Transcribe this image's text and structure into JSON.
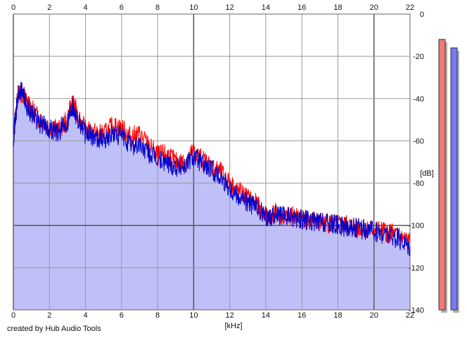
{
  "credit": "created by Hub Audio Tools",
  "chart_data": {
    "type": "area",
    "xlabel": "[kHz]",
    "ylabel": "[dB]",
    "xlim": [
      0,
      22
    ],
    "ylim": [
      -140,
      0
    ],
    "x_ticks": [
      0,
      2,
      4,
      6,
      8,
      10,
      12,
      14,
      16,
      18,
      20,
      22
    ],
    "y_ticks": [
      0,
      -20,
      -40,
      -60,
      -80,
      -100,
      -120,
      -140
    ],
    "grid": true,
    "background_fill_color": "#c0c0f8",
    "series": [
      {
        "color": "#ff0000",
        "x": [
          0,
          0.25,
          0.5,
          0.75,
          1,
          1.5,
          2,
          2.5,
          3,
          3.25,
          3.5,
          4,
          4.5,
          5,
          5.5,
          6,
          6.5,
          7,
          7.5,
          8,
          8.5,
          9,
          9.5,
          10,
          10.5,
          11,
          11.5,
          12,
          12.5,
          13,
          13.5,
          14,
          14.5,
          15,
          15.5,
          16,
          16.5,
          17,
          17.5,
          18,
          18.5,
          19,
          19.5,
          20,
          20.5,
          21,
          21.5,
          22
        ],
        "y": [
          -58,
          -38,
          -37,
          -42,
          -45,
          -50,
          -53,
          -55,
          -50,
          -42,
          -46,
          -55,
          -56,
          -57,
          -53,
          -54,
          -58,
          -57,
          -62,
          -67,
          -66,
          -70,
          -70,
          -65,
          -69,
          -72,
          -75,
          -80,
          -84,
          -87,
          -90,
          -96,
          -94,
          -97,
          -95,
          -97,
          -98,
          -98,
          -99,
          -100,
          -100,
          -101,
          -101,
          -102,
          -103,
          -104,
          -106,
          -108
        ]
      },
      {
        "color": "#0000cc",
        "x": [
          0,
          0.25,
          0.5,
          0.75,
          1,
          1.5,
          2,
          2.5,
          3,
          3.25,
          3.5,
          4,
          4.5,
          5,
          5.5,
          6,
          6.5,
          7,
          7.5,
          8,
          8.5,
          9,
          9.5,
          10,
          10.5,
          11,
          11.5,
          12,
          12.5,
          13,
          13.5,
          14,
          14.5,
          15,
          15.5,
          16,
          16.5,
          17,
          17.5,
          18,
          18.5,
          19,
          19.5,
          20,
          20.5,
          21,
          21.5,
          22
        ],
        "y": [
          -58,
          -39,
          -36,
          -44,
          -47,
          -52,
          -54,
          -56,
          -51,
          -43,
          -48,
          -57,
          -58,
          -59,
          -57,
          -58,
          -62,
          -62,
          -66,
          -69,
          -70,
          -72,
          -72,
          -67,
          -71,
          -74,
          -77,
          -82,
          -86,
          -89,
          -92,
          -96,
          -95,
          -96,
          -96,
          -97,
          -98,
          -99,
          -99,
          -100,
          -101,
          -101,
          -102,
          -103,
          -104,
          -105,
          -107,
          -110
        ]
      }
    ],
    "meters": [
      {
        "color": "#f07878",
        "level": -12
      },
      {
        "color": "#7878f0",
        "level": -16
      }
    ]
  }
}
